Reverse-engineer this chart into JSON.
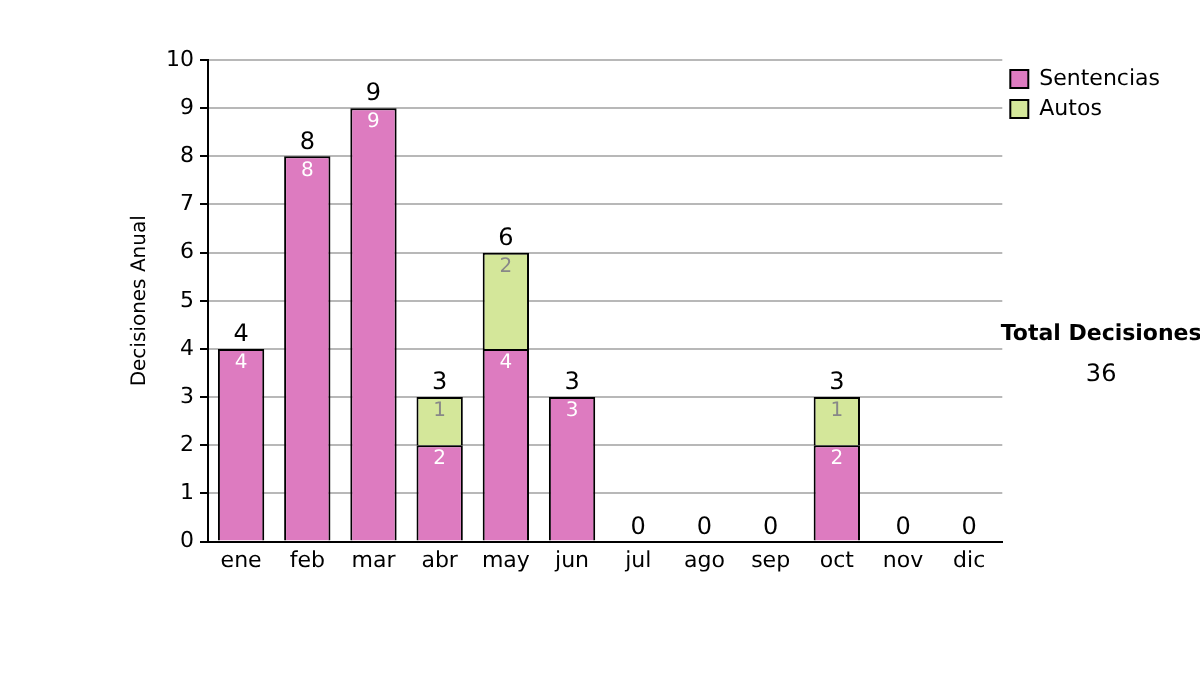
{
  "chart_data": {
    "type": "bar",
    "stacked": true,
    "ylabel": "Decisiones Anual",
    "categories": [
      "ene",
      "feb",
      "mar",
      "abr",
      "may",
      "jun",
      "jul",
      "ago",
      "sep",
      "oct",
      "nov",
      "dic"
    ],
    "series": [
      {
        "name": "Sentencias",
        "color": "#dd7bc0",
        "values": [
          4,
          8,
          9,
          2,
          4,
          3,
          0,
          0,
          0,
          2,
          0,
          0
        ],
        "value_labels": [
          "4",
          "8",
          "9",
          "2",
          "4",
          "3",
          null,
          null,
          null,
          "2",
          null,
          null
        ]
      },
      {
        "name": "Autos",
        "color": "#d4e79a",
        "values": [
          0,
          0,
          0,
          1,
          2,
          0,
          0,
          0,
          0,
          1,
          0,
          0
        ],
        "value_labels": [
          null,
          null,
          null,
          "1",
          "2",
          null,
          null,
          null,
          null,
          "1",
          null,
          null
        ]
      }
    ],
    "totals": [
      "4",
      "8",
      "9",
      "3",
      "6",
      "3",
      "0",
      "0",
      "0",
      "3",
      "0",
      "0"
    ],
    "ylim": [
      0,
      10
    ],
    "yticks": [
      0,
      1,
      2,
      3,
      4,
      5,
      6,
      7,
      8,
      9,
      10
    ],
    "grid": "y",
    "legend": "right",
    "annotations": [
      "Total Decisiones",
      "36"
    ]
  }
}
